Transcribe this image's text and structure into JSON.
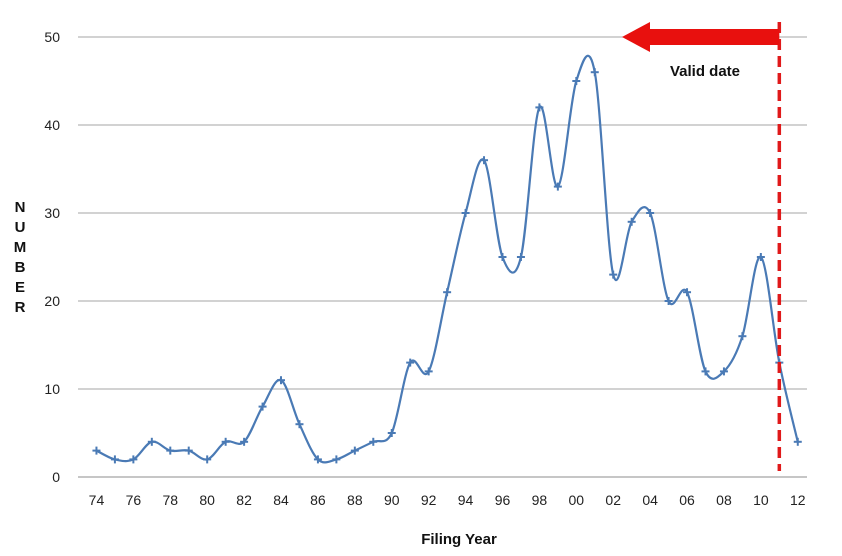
{
  "chart_data": {
    "type": "line",
    "title": "",
    "xlabel": "Filing Year",
    "ylabel": "NUMBER",
    "ylim": [
      0,
      50
    ],
    "y_ticks": [
      0,
      10,
      20,
      30,
      40,
      50
    ],
    "x_tick_labels": [
      "74",
      "76",
      "78",
      "80",
      "82",
      "84",
      "86",
      "88",
      "90",
      "92",
      "94",
      "96",
      "98",
      "00",
      "02",
      "04",
      "06",
      "08",
      "10",
      "12"
    ],
    "grid": "horizontal",
    "series": [
      {
        "color": "#4a7ab5",
        "marker": "plus",
        "x": [
          1974,
          1975,
          1976,
          1977,
          1978,
          1979,
          1980,
          1981,
          1982,
          1983,
          1984,
          1985,
          1986,
          1987,
          1988,
          1989,
          1990,
          1991,
          1992,
          1993,
          1994,
          1995,
          1996,
          1997,
          1998,
          1999,
          2000,
          2001,
          2002,
          2003,
          2004,
          2005,
          2006,
          2007,
          2008,
          2009,
          2010,
          2011,
          2012
        ],
        "values": [
          3,
          2,
          2,
          4,
          3,
          3,
          2,
          4,
          4,
          8,
          11,
          6,
          2,
          2,
          3,
          4,
          5,
          13,
          12,
          21,
          30,
          36,
          25,
          25,
          42,
          33,
          45,
          46,
          23,
          29,
          30,
          20,
          21,
          12,
          12,
          16,
          25,
          13,
          4
        ]
      }
    ],
    "annotations": [
      {
        "text": "Valid date",
        "cutoff_year": 2011,
        "line_color": "#e0191a",
        "line_style": "dashed",
        "arrow_direction": "left",
        "arrow_color": "#e8100e"
      }
    ]
  }
}
